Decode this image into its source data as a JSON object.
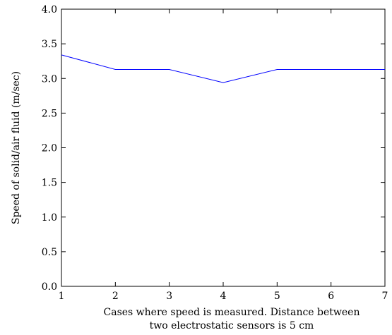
{
  "chart_data": {
    "type": "line",
    "title": "",
    "xlabel_lines": [
      "Cases where speed is measured. Distance between",
      "two electrostatic sensors is 5 cm"
    ],
    "ylabel": "Speed of solid/air fluid (m/sec)",
    "xlim": [
      1,
      7
    ],
    "ylim": [
      0.0,
      4.0
    ],
    "x_ticks": [
      "1",
      "2",
      "3",
      "4",
      "5",
      "6",
      "7"
    ],
    "y_ticks": [
      "0.0",
      "0.5",
      "1.0",
      "1.5",
      "2.0",
      "2.5",
      "3.0",
      "3.5",
      "4.0"
    ],
    "grid": false,
    "series": [
      {
        "color": "#0000ff",
        "x": [
          1,
          2,
          3,
          4,
          5,
          6,
          7
        ],
        "y": [
          3.34,
          3.13,
          3.13,
          2.94,
          3.13,
          3.13,
          3.13
        ]
      }
    ]
  }
}
